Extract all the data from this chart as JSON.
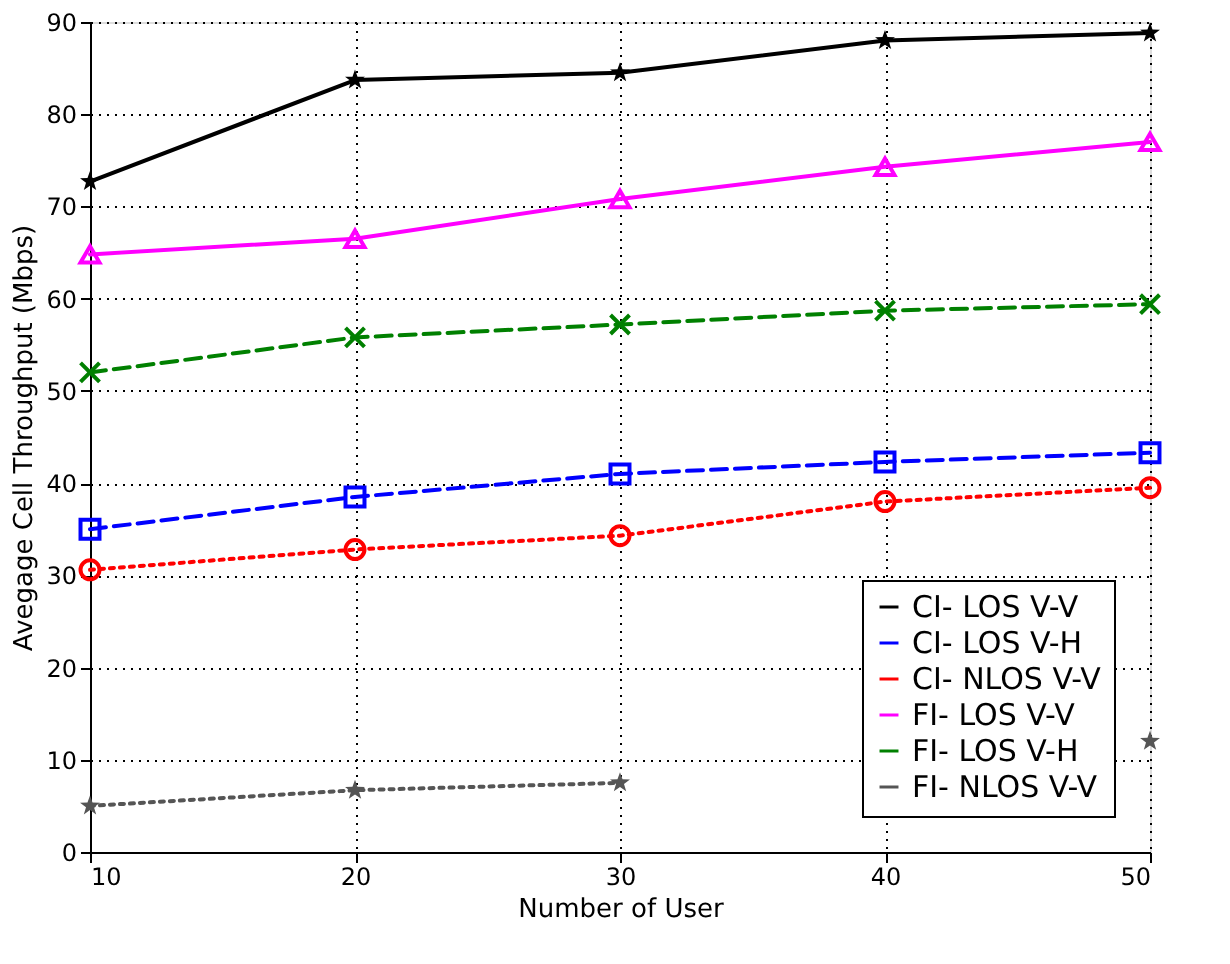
{
  "chart_data": {
    "type": "line",
    "xlabel": "Number of User",
    "ylabel": "Avegage Cell Throughput (Mbps)",
    "x": [
      10,
      20,
      30,
      40,
      50
    ],
    "xlim": [
      10,
      50
    ],
    "xticks": [
      10,
      20,
      30,
      40,
      50
    ],
    "ylim": [
      0,
      90
    ],
    "yticks": [
      0,
      10,
      20,
      30,
      40,
      50,
      60,
      70,
      80,
      90
    ],
    "grid": true,
    "legend": "bottom right",
    "series": [
      {
        "name": "CI- LOS V-V",
        "color": "#000000",
        "marker": "star",
        "line_style": "solid",
        "values": [
          72.7,
          83.7,
          84.5,
          88.0,
          88.8
        ]
      },
      {
        "name": "CI- LOS V-H",
        "color": "#0000ff",
        "marker": "square",
        "line_style": "dashed",
        "values": [
          35.0,
          38.5,
          41.0,
          42.3,
          43.3
        ]
      },
      {
        "name": "CI- NLOS V-V",
        "color": "#ff0000",
        "marker": "circle",
        "line_style": "dotted",
        "values": [
          30.6,
          32.8,
          34.3,
          38.0,
          39.5
        ]
      },
      {
        "name": "FI- LOS V-V",
        "color": "#ff00ff",
        "marker": "triangle",
        "line_style": "solid",
        "values": [
          64.8,
          66.5,
          70.8,
          74.3,
          77.0
        ]
      },
      {
        "name": "FI- LOS V-H",
        "color": "#008000",
        "marker": "cross",
        "line_style": "dashed",
        "values": [
          52.0,
          55.8,
          57.2,
          58.7,
          59.4
        ]
      },
      {
        "name": "FI- NLOS V-V",
        "color": "#555555",
        "marker": "star",
        "line_style": "dotted",
        "values": [
          5.0,
          6.7,
          7.5,
          null,
          12.0
        ]
      }
    ]
  }
}
